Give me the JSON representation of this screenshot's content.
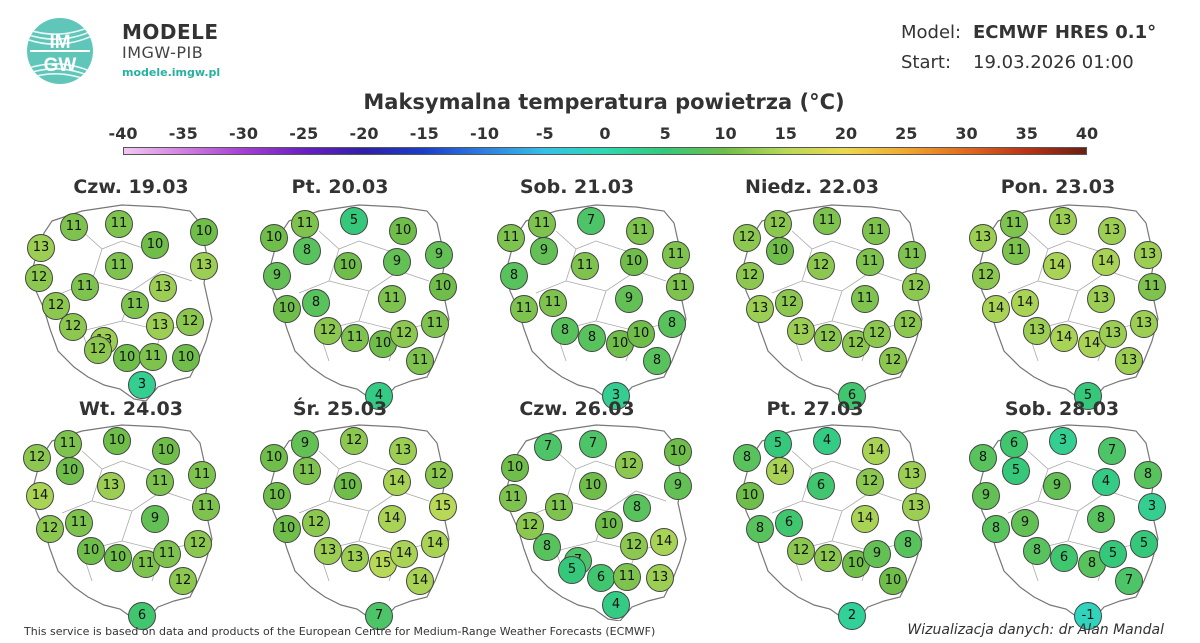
{
  "header": {
    "brand_title": "MODELE",
    "brand_sub": "IMGW-PIB",
    "brand_url": "modele.imgw.pl",
    "logo_text_top": "IM",
    "logo_text_bottom": "GW",
    "model_key": "Model:",
    "model_value": "ECMWF HRES 0.1°",
    "start_key": "Start:",
    "start_value": "19.03.2026 01:00",
    "title": "Maksymalna temperatura powietrza (°C)"
  },
  "scale": {
    "labels": [
      "-40",
      "-35",
      "-30",
      "-25",
      "-20",
      "-15",
      "-10",
      "-5",
      "0",
      "5",
      "10",
      "15",
      "20",
      "25",
      "30",
      "35",
      "40"
    ],
    "colors": [
      "#f2c7f2",
      "#d27fe0",
      "#a43fd2",
      "#6a1fc0",
      "#3020a8",
      "#1b3fc8",
      "#2f7fe0",
      "#36c0e8",
      "#2fd8b0",
      "#35c87a",
      "#6fbe4a",
      "#b8d858",
      "#ecd850",
      "#f0a830",
      "#e06a20",
      "#b83418",
      "#6a2010"
    ]
  },
  "icons": {
    "logo": "imgw-logo-icon"
  },
  "days": [
    {
      "label": "Czw. 19.03",
      "values": [
        13,
        11,
        11,
        10,
        10,
        13,
        12,
        11,
        11,
        13,
        12,
        11,
        12,
        13,
        13,
        12,
        10,
        12,
        11,
        10,
        3
      ]
    },
    {
      "label": "Pt. 20.03",
      "values": [
        10,
        11,
        5,
        10,
        8,
        10,
        9,
        9,
        9,
        8,
        11,
        10,
        10,
        12,
        11,
        10,
        12,
        11,
        11,
        4
      ]
    },
    {
      "label": "Sob. 21.03",
      "values": [
        11,
        11,
        7,
        11,
        9,
        11,
        10,
        11,
        8,
        11,
        9,
        11,
        11,
        8,
        8,
        10,
        10,
        8,
        8,
        3
      ]
    },
    {
      "label": "Niedz. 22.03",
      "values": [
        12,
        12,
        11,
        11,
        10,
        12,
        11,
        11,
        12,
        12,
        11,
        12,
        13,
        13,
        12,
        12,
        12,
        12,
        12,
        6
      ]
    },
    {
      "label": "Pon. 23.03",
      "values": [
        13,
        11,
        13,
        13,
        11,
        14,
        14,
        13,
        12,
        14,
        13,
        11,
        14,
        13,
        14,
        14,
        13,
        13,
        13,
        5
      ]
    },
    {
      "label": "Wt. 24.03",
      "values": [
        12,
        11,
        10,
        10,
        10,
        13,
        11,
        11,
        14,
        11,
        9,
        11,
        12,
        10,
        10,
        11,
        11,
        12,
        12,
        6
      ]
    },
    {
      "label": "Śr. 25.03",
      "values": [
        10,
        9,
        12,
        13,
        11,
        10,
        14,
        12,
        10,
        12,
        14,
        15,
        10,
        13,
        13,
        15,
        14,
        14,
        14,
        7
      ]
    },
    {
      "label": "Czw. 26.03",
      "values": [
        10,
        7,
        7,
        12,
        10,
        9,
        11,
        11,
        10,
        8,
        12,
        10,
        8,
        7,
        12,
        14,
        6,
        5,
        11,
        13,
        4
      ]
    },
    {
      "label": "Pt. 27.03",
      "values": [
        8,
        5,
        4,
        14,
        14,
        6,
        12,
        13,
        10,
        6,
        14,
        13,
        8,
        12,
        12,
        10,
        9,
        8,
        10,
        2
      ]
    },
    {
      "label": "Sob. 28.03",
      "values": [
        8,
        6,
        3,
        7,
        5,
        9,
        4,
        8,
        9,
        9,
        8,
        3,
        8,
        8,
        6,
        8,
        5,
        5,
        7,
        -1
      ]
    }
  ],
  "footer": {
    "left": "This service is based on data and products of the European Centre for Medium-Range Weather Forecasts (ECMWF)",
    "right": "Wizualizacja danych: dr Alan Mandal"
  }
}
